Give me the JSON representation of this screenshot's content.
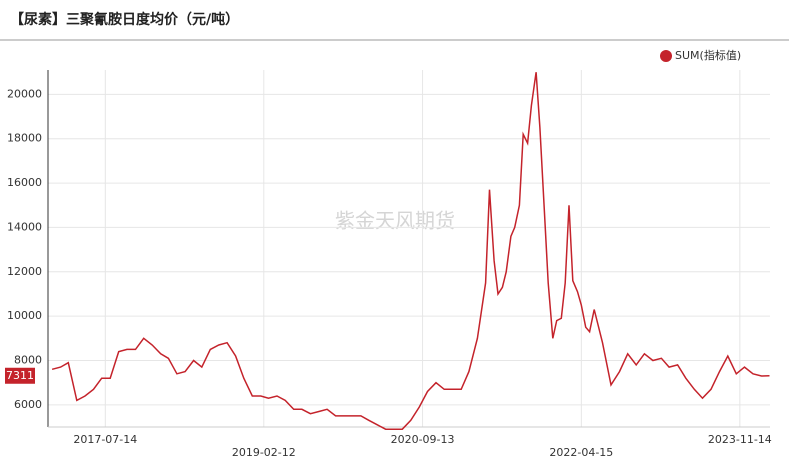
{
  "chart_data": {
    "type": "line",
    "title": "【尿素】三聚氰胺日度均价（元/吨）",
    "watermark": "紫金天风期货",
    "legend_position": "top-right",
    "grid": true,
    "x": [
      "2017-01-01",
      "2017-02-01",
      "2017-03-01",
      "2017-04-01",
      "2017-05-01",
      "2017-06-01",
      "2017-07-01",
      "2017-08-01",
      "2017-09-01",
      "2017-10-01",
      "2017-11-01",
      "2017-12-01",
      "2018-01-01",
      "2018-02-01",
      "2018-03-01",
      "2018-04-01",
      "2018-05-01",
      "2018-06-01",
      "2018-07-01",
      "2018-08-01",
      "2018-09-01",
      "2018-10-01",
      "2018-11-01",
      "2018-12-01",
      "2019-01-01",
      "2019-02-01",
      "2019-03-01",
      "2019-04-01",
      "2019-05-01",
      "2019-06-01",
      "2019-07-01",
      "2019-08-01",
      "2019-09-01",
      "2019-10-01",
      "2019-11-01",
      "2019-12-01",
      "2020-01-01",
      "2020-02-01",
      "2020-03-01",
      "2020-04-01",
      "2020-05-01",
      "2020-06-01",
      "2020-07-01",
      "2020-08-01",
      "2020-09-01",
      "2020-10-01",
      "2020-11-01",
      "2020-12-01",
      "2021-01-01",
      "2021-02-01",
      "2021-03-01",
      "2021-04-01",
      "2021-05-01",
      "2021-05-15",
      "2021-06-01",
      "2021-06-15",
      "2021-07-01",
      "2021-07-15",
      "2021-08-01",
      "2021-08-15",
      "2021-09-01",
      "2021-09-15",
      "2021-10-01",
      "2021-10-15",
      "2021-11-01",
      "2021-11-15",
      "2021-12-01",
      "2021-12-15",
      "2022-01-01",
      "2022-01-15",
      "2022-02-01",
      "2022-02-15",
      "2022-03-01",
      "2022-03-15",
      "2022-04-01",
      "2022-04-15",
      "2022-05-01",
      "2022-05-15",
      "2022-06-01",
      "2022-07-01",
      "2022-08-01",
      "2022-09-01",
      "2022-10-01",
      "2022-11-01",
      "2022-12-01",
      "2023-01-01",
      "2023-02-01",
      "2023-03-01",
      "2023-04-01",
      "2023-05-01",
      "2023-06-01",
      "2023-07-01",
      "2023-08-01",
      "2023-09-01",
      "2023-10-01",
      "2023-11-01",
      "2023-12-01",
      "2024-01-01",
      "2024-02-01",
      "2024-03-01"
    ],
    "series": [
      {
        "name": "SUM(指标值)",
        "color": "#c4232b",
        "values": [
          7600,
          7700,
          7900,
          6200,
          6400,
          6700,
          7200,
          7200,
          8400,
          8500,
          8500,
          9000,
          8700,
          8300,
          8100,
          7400,
          7500,
          8000,
          7700,
          8500,
          8700,
          8800,
          8200,
          7200,
          6400,
          6400,
          6300,
          6400,
          6200,
          5800,
          5800,
          5600,
          5700,
          5800,
          5500,
          5500,
          5500,
          5500,
          5300,
          5100,
          4900,
          4900,
          4900,
          5300,
          5900,
          6600,
          7000,
          6700,
          6700,
          6700,
          7500,
          9000,
          11500,
          15700,
          12500,
          11000,
          11300,
          12000,
          13600,
          14000,
          15000,
          18200,
          17800,
          19500,
          21000,
          18500,
          14800,
          11500,
          9000,
          9800,
          9900,
          11500,
          15000,
          11600,
          11100,
          10500,
          9500,
          9300,
          10300,
          8800,
          6900,
          7500,
          8300,
          7800,
          8300,
          8000,
          8100,
          7700,
          7800,
          7200,
          6700,
          6300,
          6700,
          7500,
          8200,
          7400,
          7700,
          7400,
          7300,
          7311
        ]
      }
    ],
    "xlim": [
      "2016-12-17",
      "2024-03-03"
    ],
    "xticks": [
      "2017-07-14",
      "2019-02-12",
      "2020-09-13",
      "2022-04-15",
      "2023-11-14"
    ],
    "ylim": [
      5000,
      21100
    ],
    "yticks": [
      6000,
      8000,
      10000,
      12000,
      14000,
      16000,
      18000,
      20000
    ]
  }
}
